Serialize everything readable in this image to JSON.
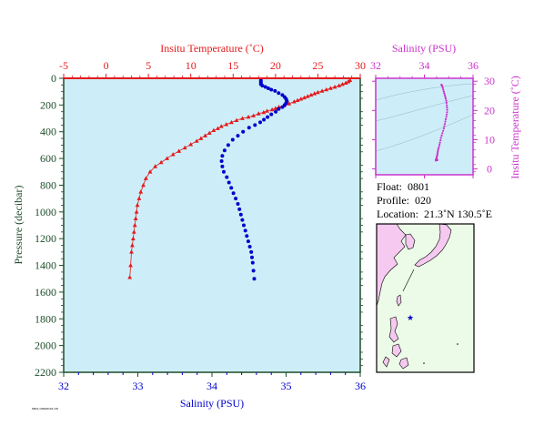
{
  "colors": {
    "temperature": "#e41a1c",
    "salinity": "#0000cc",
    "ts": "#cc33cc",
    "axis_dark": "#1e4d2b",
    "plot_bg": "#cdeef8",
    "map_sea": "#ecfbe8",
    "map_land": "#f5c9f0"
  },
  "info": {
    "float_label": "Float:",
    "float_value": "0801",
    "profile_label": "Profile:",
    "profile_value": "020",
    "location_label": "Location:",
    "location_value": "21.3˚N  130.5˚E"
  },
  "footer": "0801/20040101/20",
  "chart_data": [
    {
      "type": "line",
      "ylabel": "Pressure (decibar)",
      "ylim": [
        2200,
        0
      ],
      "y_ticks": [
        0,
        200,
        400,
        600,
        800,
        1000,
        1200,
        1400,
        1600,
        1800,
        2000,
        2200
      ],
      "x_top": {
        "label": "Insitu Temperature (˚C)",
        "lim": [
          -5,
          30
        ],
        "ticks": [
          -5,
          0,
          5,
          10,
          15,
          20,
          25,
          30
        ]
      },
      "x_bottom": {
        "label": "Salinity (PSU)",
        "lim": [
          32,
          36
        ],
        "ticks": [
          32,
          33,
          34,
          35,
          36
        ]
      },
      "series": [
        {
          "kind": "temperature",
          "axis": "top",
          "marker": "triangle",
          "x": [
            28.8,
            28.6,
            28.3,
            27.9,
            27.5,
            27,
            26.5,
            26,
            25.5,
            25,
            24.6,
            24.2,
            23.8,
            23.4,
            23,
            22.6,
            22.2,
            21.6,
            21,
            20.4,
            20,
            19.6,
            19,
            18.6,
            18,
            17.4,
            16.8,
            16.1,
            15.4,
            14.8,
            14.2,
            13.6,
            13.2,
            12.7,
            12.2,
            11.7,
            11.2,
            10.7,
            10,
            9.3,
            8.6,
            7.9,
            7.2,
            6.5,
            5.8,
            5.2,
            4.7,
            4.4,
            4.1,
            3.9,
            3.7,
            3.6,
            3.5,
            3.4,
            3.3,
            3.2,
            3.1,
            3,
            2.9,
            2.8
          ],
          "y": [
            15,
            25,
            35,
            45,
            55,
            65,
            75,
            85,
            95,
            105,
            115,
            125,
            135,
            145,
            155,
            165,
            175,
            190,
            205,
            215,
            225,
            235,
            245,
            255,
            265,
            280,
            290,
            300,
            315,
            330,
            345,
            360,
            375,
            390,
            410,
            430,
            450,
            470,
            495,
            520,
            545,
            570,
            600,
            630,
            660,
            700,
            750,
            800,
            850,
            900,
            950,
            1000,
            1050,
            1100,
            1150,
            1200,
            1250,
            1300,
            1400,
            1490
          ]
        },
        {
          "kind": "salinity",
          "axis": "bottom",
          "marker": "circle",
          "x": [
            34.66,
            34.66,
            34.66,
            34.66,
            34.68,
            34.72,
            34.76,
            34.8,
            34.85,
            34.9,
            34.95,
            34.98,
            35.0,
            35.01,
            35.0,
            34.98,
            34.95,
            34.9,
            34.86,
            34.8,
            34.75,
            34.7,
            34.65,
            34.58,
            34.5,
            34.42,
            34.35,
            34.28,
            34.22,
            34.17,
            34.14,
            34.13,
            34.14,
            34.16,
            34.2,
            34.23,
            34.26,
            34.29,
            34.32,
            34.35,
            34.37,
            34.39,
            34.41,
            34.43,
            34.45,
            34.47,
            34.49,
            34.51,
            34.53,
            34.54,
            34.55,
            34.56,
            34.57
          ],
          "y": [
            15,
            25,
            35,
            45,
            55,
            65,
            75,
            85,
            95,
            110,
            125,
            140,
            155,
            170,
            185,
            200,
            215,
            230,
            250,
            270,
            290,
            310,
            330,
            350,
            370,
            400,
            430,
            460,
            500,
            540,
            580,
            620,
            660,
            700,
            740,
            780,
            820,
            860,
            900,
            940,
            980,
            1020,
            1060,
            1100,
            1140,
            1180,
            1220,
            1260,
            1300,
            1340,
            1380,
            1440,
            1500
          ]
        }
      ]
    },
    {
      "type": "scatter",
      "title": "Salinity (PSU)",
      "xlim": [
        32,
        36
      ],
      "x_ticks": [
        32,
        34,
        36
      ],
      "ylabel": "Insitu Temperature (˚C)",
      "ylim": [
        -2,
        31
      ],
      "y_ticks": [
        0,
        10,
        20,
        30
      ],
      "series": [
        {
          "kind": "ts",
          "x": [
            34.7,
            34.72,
            34.74,
            34.76,
            34.78,
            34.8,
            34.82,
            34.84,
            34.86,
            34.88,
            34.9,
            34.91,
            34.92,
            34.93,
            34.94,
            34.93,
            34.92,
            34.9,
            34.88,
            34.86,
            34.84,
            34.82,
            34.8,
            34.77,
            34.74,
            34.71,
            34.68,
            34.66,
            34.64,
            34.62,
            34.6,
            34.58,
            34.56,
            34.55,
            34.54,
            34.53,
            34.52,
            34.51,
            34.5,
            34.49,
            34.49,
            34.48,
            34.48,
            34.47,
            34.47,
            34.47,
            34.48,
            34.49,
            34.5,
            34.52,
            34.54
          ],
          "y": [
            28.8,
            28.6,
            28.2,
            27.6,
            27,
            26.4,
            25.8,
            25.2,
            24.6,
            24,
            23.3,
            22.6,
            21.8,
            21,
            20.2,
            19.4,
            18.6,
            17.8,
            17,
            16.2,
            15.4,
            14.6,
            13.8,
            13,
            12.2,
            11.4,
            10.6,
            9.8,
            9,
            8.3,
            7.6,
            7,
            6.4,
            5.8,
            5.3,
            4.8,
            4.4,
            4,
            3.7,
            3.5,
            3.3,
            3.1,
            3,
            2.9,
            2.9,
            3,
            3.1,
            3.2,
            3.2,
            3.1,
            3
          ]
        }
      ]
    }
  ]
}
